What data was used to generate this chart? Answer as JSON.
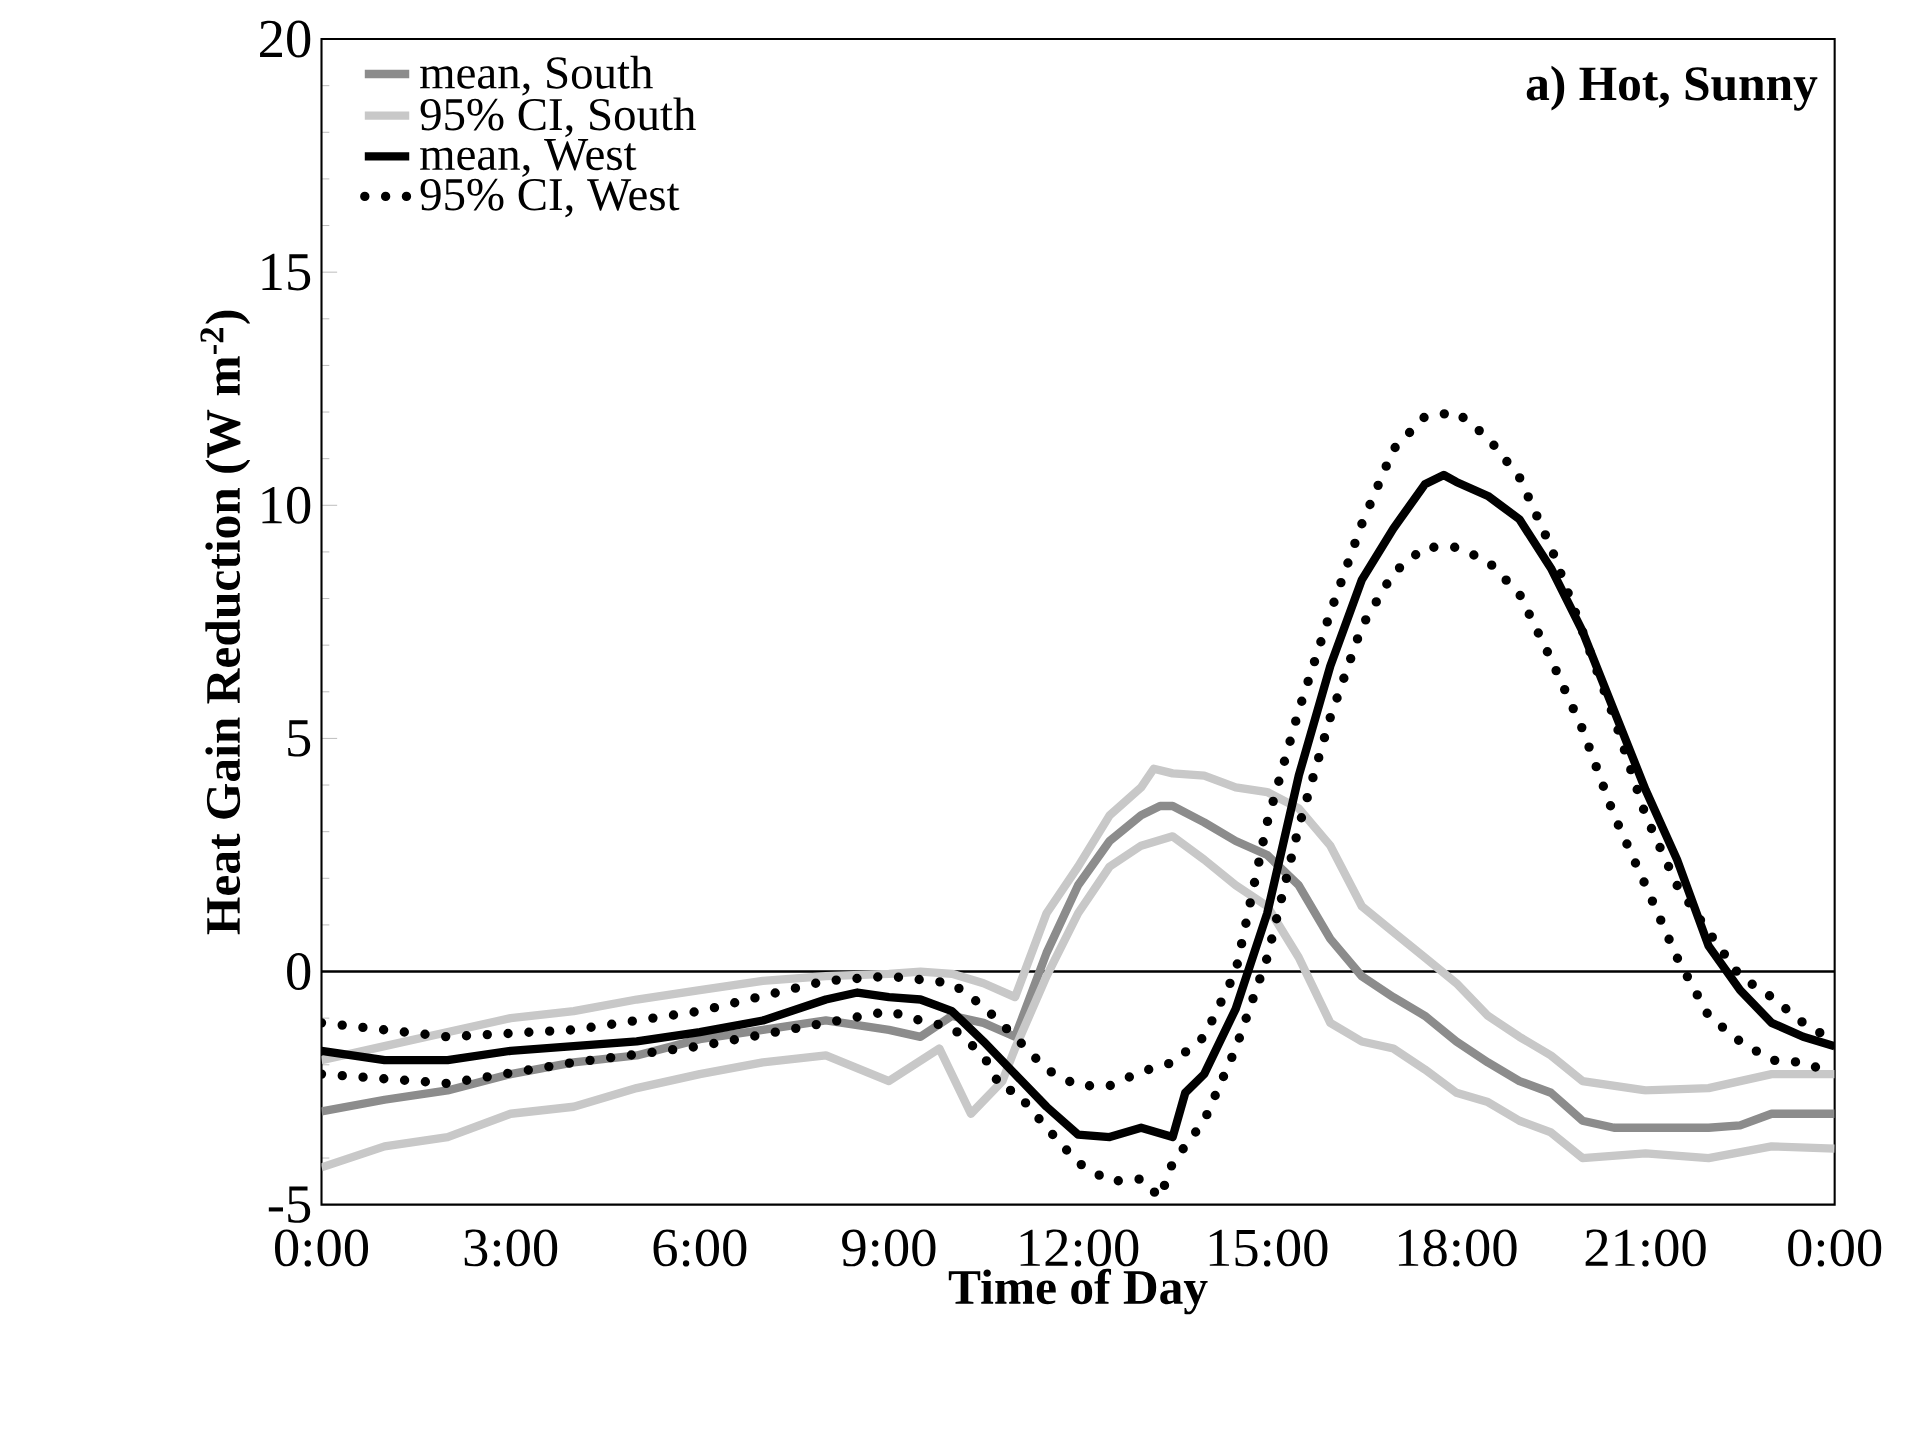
{
  "chart_data": {
    "type": "line",
    "title": "a) Hot, Sunny",
    "xlabel": "Time of Day",
    "ylabel": "Heat Gain Reduction (W m$^{-2}$)",
    "xlim": [
      0,
      24
    ],
    "ylim": [
      -5,
      20
    ],
    "xticks": [
      {
        "value": 0,
        "label": "0:00"
      },
      {
        "value": 3,
        "label": "3:00"
      },
      {
        "value": 6,
        "label": "6:00"
      },
      {
        "value": 9,
        "label": "9:00"
      },
      {
        "value": 12,
        "label": "12:00"
      },
      {
        "value": 15,
        "label": "15:00"
      },
      {
        "value": 18,
        "label": "18:00"
      },
      {
        "value": 21,
        "label": "21:00"
      },
      {
        "value": 24,
        "label": "0:00"
      }
    ],
    "yticks": [
      -5,
      0,
      5,
      10,
      15,
      20
    ],
    "legend": "top left",
    "grid": false,
    "ref_lines": [
      {
        "axis": "y",
        "value": 0,
        "color": "#000000"
      }
    ],
    "series": [
      {
        "name": "mean, South",
        "color": "#8c8c8c",
        "line_style": "solid",
        "x": [
          0,
          1,
          2,
          3,
          4,
          5,
          6,
          7,
          8,
          9,
          9.5,
          10,
          10.5,
          11,
          11.5,
          12,
          12.5,
          13,
          13.3,
          13.5,
          14,
          14.5,
          15,
          15.5,
          16,
          16.5,
          17,
          17.5,
          18,
          18.5,
          19,
          19.5,
          20,
          20.5,
          21,
          22,
          22.5,
          23,
          24
        ],
        "values": [
          -3.0,
          -2.75,
          -2.55,
          -2.2,
          -1.95,
          -1.8,
          -1.45,
          -1.25,
          -1.05,
          -1.25,
          -1.4,
          -0.95,
          -1.1,
          -1.4,
          0.4,
          1.85,
          2.8,
          3.35,
          3.55,
          3.55,
          3.2,
          2.8,
          2.5,
          1.85,
          0.7,
          -0.1,
          -0.55,
          -0.95,
          -1.5,
          -1.95,
          -2.35,
          -2.6,
          -3.2,
          -3.35,
          -3.35,
          -3.35,
          -3.3,
          -3.05,
          -3.05
        ]
      },
      {
        "name": "95% CI, South",
        "color": "#c8c8c8",
        "line_style": "solid",
        "x": [
          0,
          1,
          3,
          4,
          5,
          6,
          7,
          8,
          9,
          9.5,
          10,
          10.5,
          11,
          11.5,
          12,
          12.5,
          13,
          13.2,
          13.5,
          14,
          14.5,
          15,
          15.5,
          16,
          16.5,
          17,
          17.5,
          18,
          18.5,
          19,
          19.5,
          20,
          21,
          22,
          23,
          24
        ],
        "values": [
          -1.9,
          -1.6,
          -1.0,
          -0.85,
          -0.6,
          -0.4,
          -0.2,
          -0.1,
          -0.05,
          0.0,
          -0.05,
          -0.25,
          -0.55,
          1.25,
          2.25,
          3.35,
          3.95,
          4.35,
          4.25,
          4.2,
          3.95,
          3.85,
          3.5,
          2.7,
          1.4,
          0.85,
          0.3,
          -0.25,
          -0.95,
          -1.4,
          -1.8,
          -2.35,
          -2.55,
          -2.5,
          -2.2,
          -2.2
        ]
      },
      {
        "color": "#c8c8c8",
        "line_style": "solid",
        "x": [
          0,
          1,
          2,
          3,
          4,
          5,
          6,
          7,
          8,
          9,
          9.8,
          10.3,
          10.8,
          11,
          11.5,
          12,
          12.5,
          13,
          13.5,
          14,
          14.5,
          15,
          15.5,
          16,
          16.5,
          17,
          17.5,
          18,
          18.5,
          19,
          19.5,
          20,
          21,
          22,
          23,
          24
        ],
        "values": [
          -4.2,
          -3.75,
          -3.55,
          -3.05,
          -2.9,
          -2.5,
          -2.2,
          -1.95,
          -1.8,
          -2.35,
          -1.65,
          -3.05,
          -2.35,
          -1.65,
          -0.1,
          1.25,
          2.25,
          2.7,
          2.9,
          2.4,
          1.85,
          1.4,
          0.3,
          -1.1,
          -1.5,
          -1.65,
          -2.1,
          -2.6,
          -2.8,
          -3.2,
          -3.45,
          -4.0,
          -3.9,
          -4.0,
          -3.75,
          -3.8
        ]
      },
      {
        "name": "mean, West",
        "color": "#000000",
        "line_style": "solid",
        "x": [
          0,
          1,
          2,
          3,
          4,
          5,
          6,
          7,
          8,
          8.5,
          9,
          9.5,
          10,
          10.5,
          11,
          11.5,
          12,
          12.5,
          13,
          13.5,
          13.7,
          14,
          14.5,
          15,
          15.5,
          16,
          16.5,
          17,
          17.5,
          17.8,
          18,
          18.5,
          19,
          19.5,
          20,
          20.5,
          21,
          21.5,
          22,
          22.5,
          23,
          23.5,
          24
        ],
        "values": [
          -1.7,
          -1.9,
          -1.9,
          -1.7,
          -1.6,
          -1.5,
          -1.3,
          -1.05,
          -0.6,
          -0.45,
          -0.55,
          -0.6,
          -0.85,
          -1.5,
          -2.2,
          -2.9,
          -3.5,
          -3.55,
          -3.35,
          -3.55,
          -2.6,
          -2.2,
          -0.8,
          1.25,
          4.2,
          6.55,
          8.4,
          9.5,
          10.45,
          10.65,
          10.5,
          10.2,
          9.7,
          8.65,
          7.3,
          5.6,
          3.9,
          2.4,
          0.55,
          -0.4,
          -1.1,
          -1.4,
          -1.6
        ]
      },
      {
        "name": "95% CI, West",
        "color": "#000000",
        "line_style": "dotted",
        "x": [
          0,
          2,
          4,
          6,
          8,
          9,
          10,
          10.5,
          11,
          11.5,
          12,
          12.5,
          13,
          13.5,
          14,
          14.5,
          15,
          15.5,
          16,
          16.5,
          17,
          17.5,
          18,
          18.5,
          19,
          19.5,
          20,
          20.5,
          21,
          21.5,
          22,
          22.5,
          23,
          23.5,
          24
        ],
        "values": [
          -1.1,
          -1.4,
          -1.25,
          -0.85,
          -0.2,
          -0.1,
          -0.25,
          -0.75,
          -1.4,
          -2.1,
          -2.45,
          -2.45,
          -2.15,
          -1.95,
          -1.4,
          0,
          3.2,
          5.6,
          7.7,
          9.6,
          11.2,
          11.9,
          12.0,
          11.45,
          10.6,
          9.1,
          7.3,
          5.45,
          3.35,
          1.85,
          0.85,
          -0.1,
          -0.55,
          -1.1,
          -1.5
        ]
      },
      {
        "color": "#000000",
        "line_style": "dotted",
        "x": [
          0,
          2,
          4,
          6,
          8,
          9,
          9.5,
          10,
          10.5,
          10.8,
          11,
          11.5,
          12,
          12.5,
          13,
          13.3,
          13.5,
          14,
          14.5,
          15,
          15.5,
          16,
          16.5,
          17,
          17.5,
          18,
          18.5,
          19,
          19.5,
          20,
          20.5,
          21,
          21.5,
          22,
          22.5,
          23,
          23.5,
          24
        ],
        "values": [
          -2.2,
          -2.4,
          -1.95,
          -1.6,
          -1.1,
          -0.85,
          -1.05,
          -1.2,
          -1.8,
          -2.55,
          -2.55,
          -3.35,
          -4.1,
          -4.5,
          -4.45,
          -4.85,
          -4.1,
          -3.2,
          -1.65,
          0.3,
          3.1,
          5.45,
          7.4,
          8.55,
          9.1,
          9.1,
          8.8,
          8.1,
          6.7,
          5.2,
          3.35,
          1.85,
          0.3,
          -0.95,
          -1.5,
          -1.9,
          -1.95,
          -2.2
        ]
      }
    ]
  }
}
